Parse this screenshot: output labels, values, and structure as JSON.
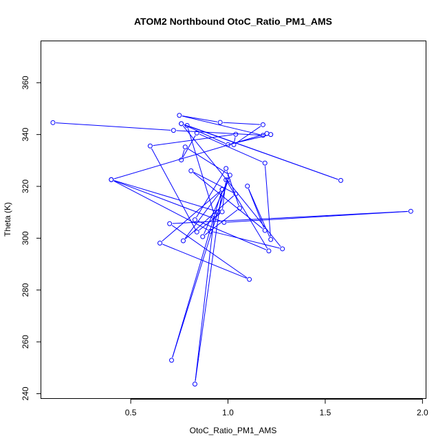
{
  "chart_data": {
    "type": "line",
    "title": "ATOM2 Northbound OtoC_Ratio_PM1_AMS",
    "xlabel": "OtoC_Ratio_PM1_AMS",
    "ylabel": "Theta (K)",
    "xlim": [
      0.04,
      2.02
    ],
    "ylim": [
      238,
      376
    ],
    "x_ticks": [
      0.5,
      1.0,
      1.5,
      2.0
    ],
    "x_tick_labels": [
      "0.5",
      "1.0",
      "1.5",
      "2.0"
    ],
    "y_ticks": [
      240,
      260,
      280,
      300,
      320,
      340,
      360
    ],
    "y_tick_labels": [
      "240",
      "260",
      "280",
      "300",
      "320",
      "340",
      "360"
    ],
    "grid": false,
    "marker": "open-circle",
    "series": [
      {
        "color": "#0000ff",
        "points": [
          [
            0.1,
            344.6
          ],
          [
            0.72,
            341.6
          ],
          [
            1.18,
            339.7
          ],
          [
            0.75,
            347.4
          ],
          [
            0.96,
            344.7
          ],
          [
            1.18,
            343.8
          ],
          [
            1.03,
            336.1
          ],
          [
            1.04,
            340.1
          ],
          [
            0.6,
            335.6
          ],
          [
            0.84,
            302.4
          ],
          [
            0.97,
            310.2
          ],
          [
            0.99,
            322.5
          ],
          [
            1.21,
            295.1
          ],
          [
            0.83,
            307.1
          ],
          [
            0.99,
            326.9
          ],
          [
            1.06,
            311.6
          ],
          [
            0.87,
            300.6
          ],
          [
            1.01,
            324.3
          ],
          [
            0.78,
            335.2
          ],
          [
            0.76,
            330.2
          ],
          [
            0.84,
            340.6
          ],
          [
            1.19,
            329.0
          ],
          [
            1.22,
            299.5
          ],
          [
            1.1,
            320.1
          ],
          [
            1.19,
            303.0
          ],
          [
            0.81,
            326.0
          ],
          [
            1.04,
            317.1
          ],
          [
            0.77,
            299.0
          ],
          [
            0.97,
            318.8
          ],
          [
            0.65,
            298.1
          ],
          [
            1.11,
            284.1
          ],
          [
            0.7,
            305.6
          ],
          [
            1.94,
            310.4
          ],
          [
            0.98,
            306.1
          ],
          [
            0.4,
            322.6
          ],
          [
            0.91,
            302.7
          ],
          [
            1.28,
            295.9
          ],
          [
            0.76,
            344.2
          ],
          [
            1.0,
            336.1
          ],
          [
            1.22,
            340.0
          ],
          [
            1.2,
            340.4
          ],
          [
            0.4,
            322.6
          ],
          [
            0.95,
            310.2
          ],
          [
            1.0,
            322.5
          ],
          [
            0.71,
            252.9
          ],
          [
            0.97,
            318.8
          ],
          [
            0.83,
            243.7
          ],
          [
            0.93,
            309.0
          ],
          [
            0.79,
            343.5
          ],
          [
            1.58,
            322.3
          ],
          [
            0.76,
            344.2
          ]
        ]
      }
    ]
  }
}
